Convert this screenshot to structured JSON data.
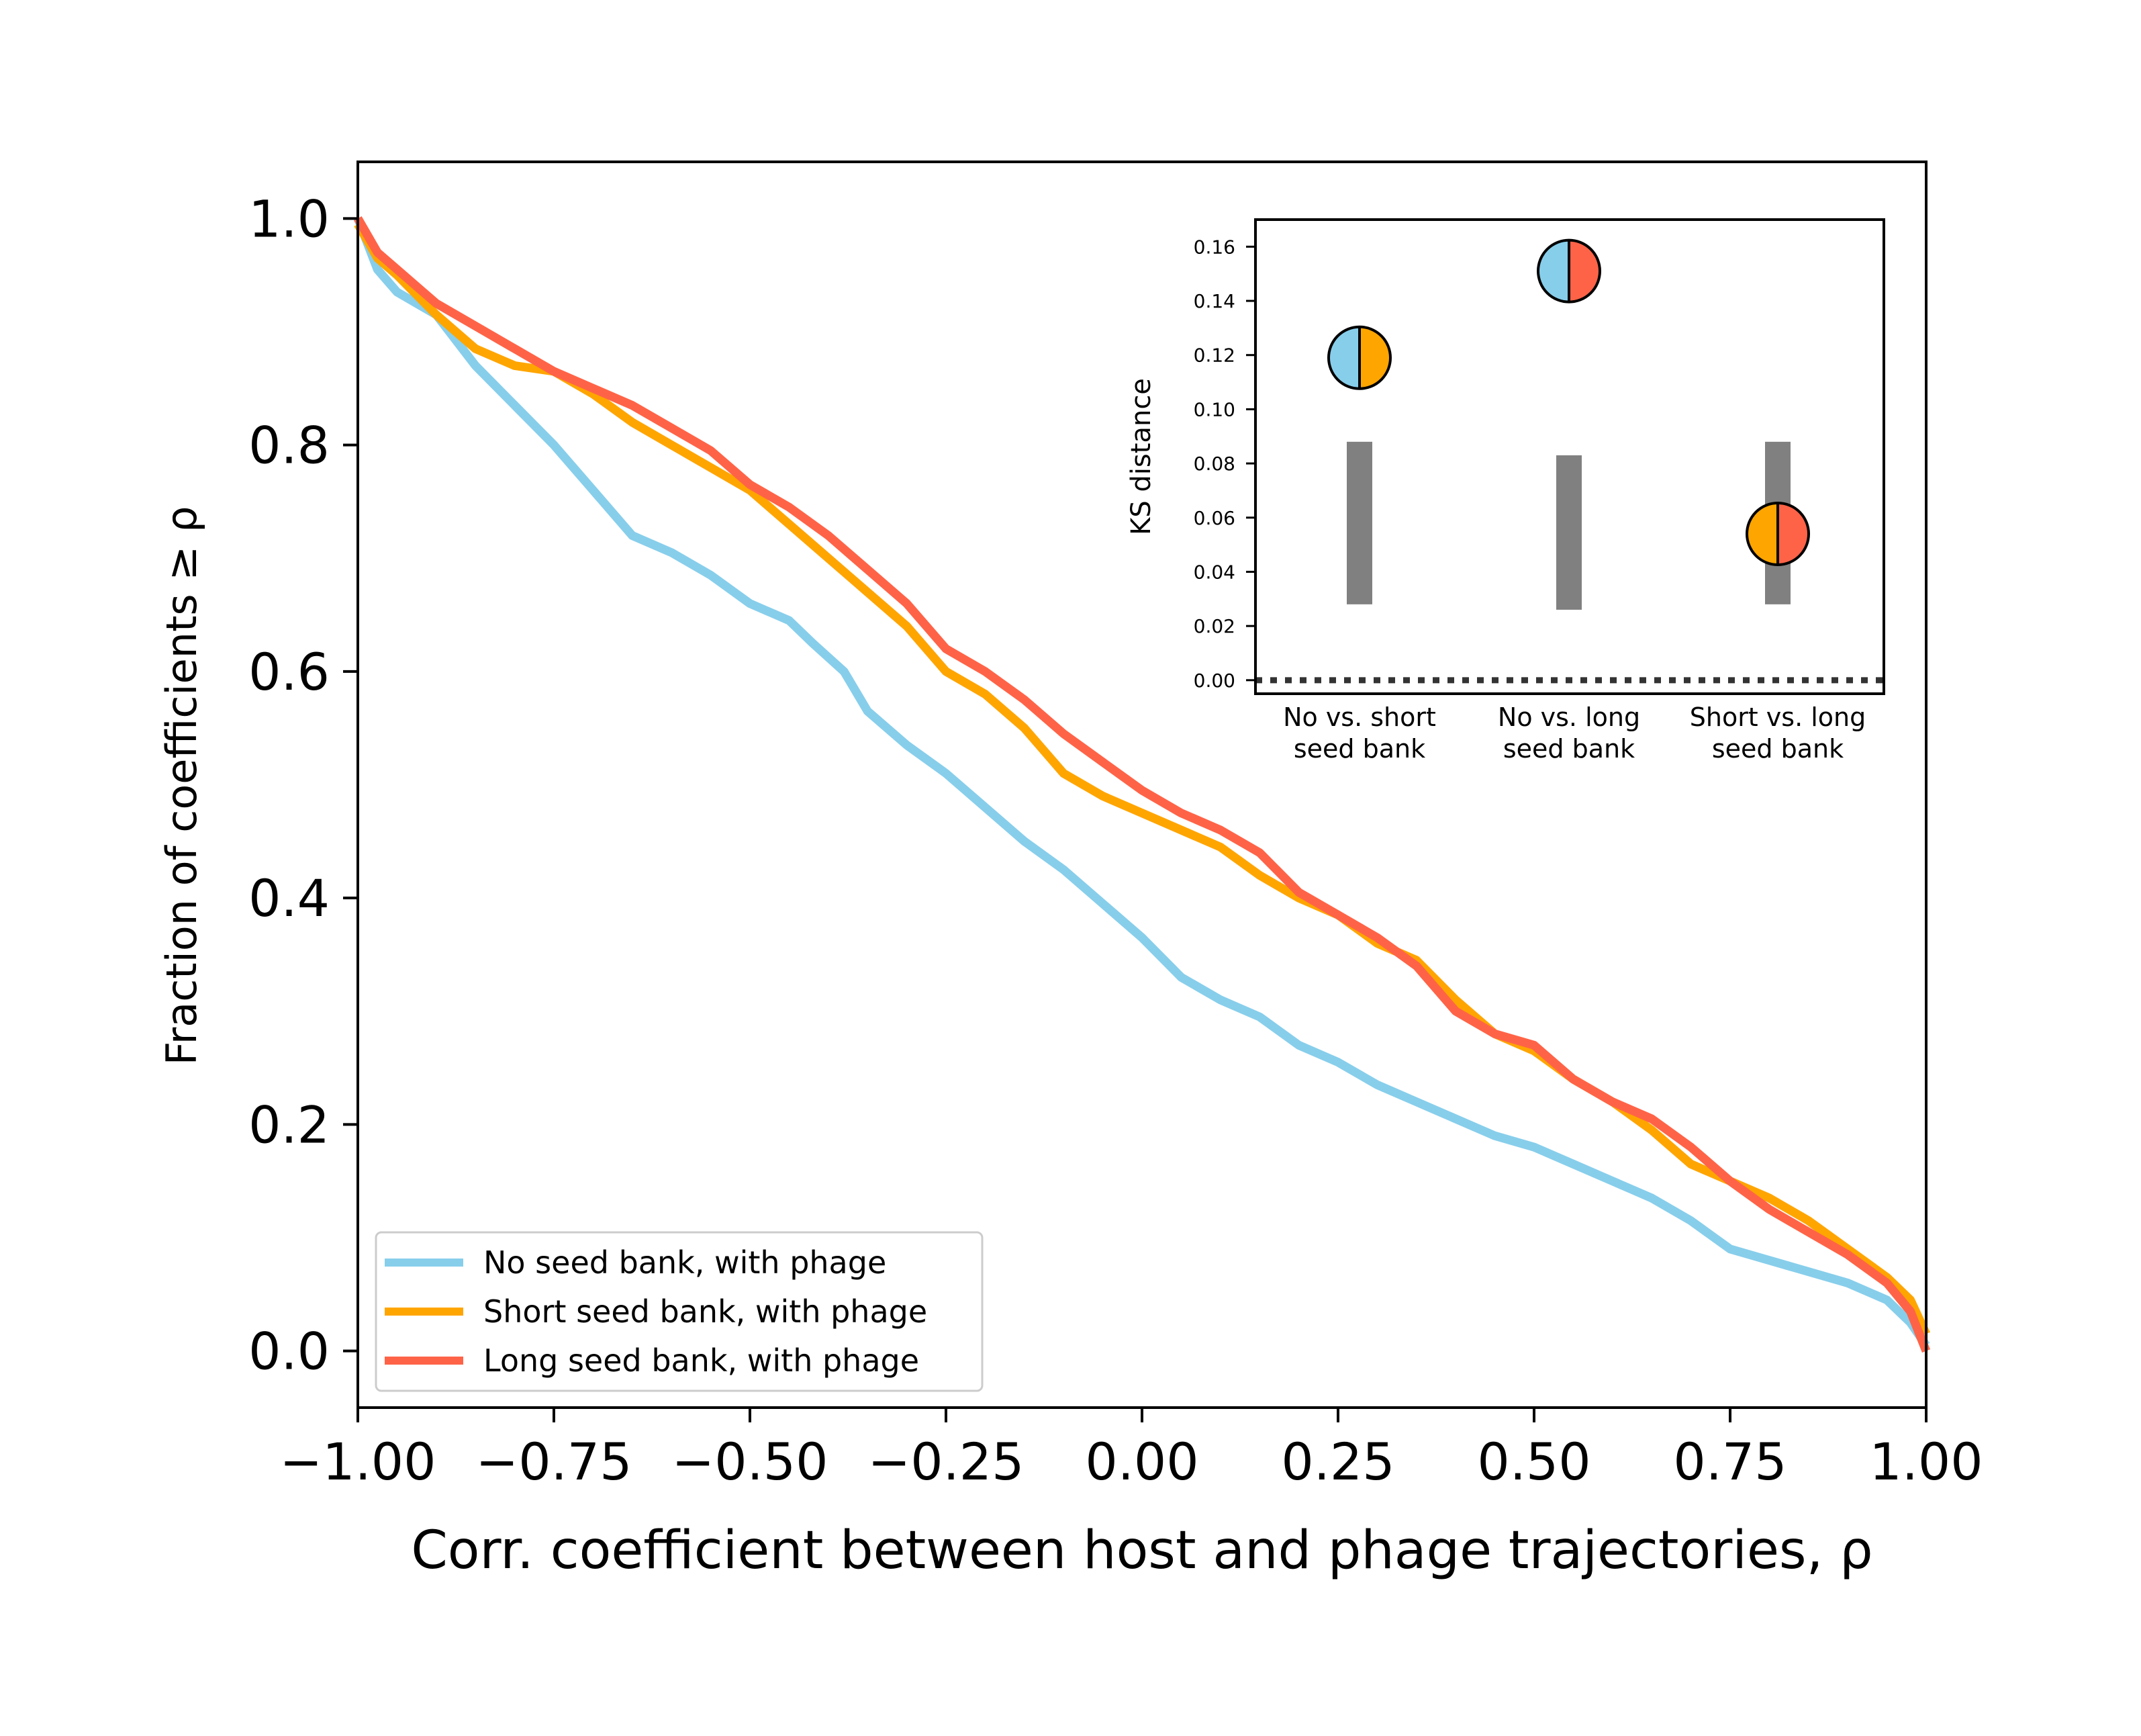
{
  "chart_data": [
    {
      "type": "line",
      "title": "",
      "xlabel": "Corr. coefficient between host and phage trajectories, ρ",
      "ylabel": "Fraction of coefficients  ≥ ρ",
      "xlim": [
        -1.0,
        1.0
      ],
      "ylim": [
        -0.05,
        1.05
      ],
      "xticks": [
        "−1.00",
        "−0.75",
        "−0.50",
        "−0.25",
        "0.00",
        "0.25",
        "0.50",
        "0.75",
        "1.00"
      ],
      "yticks": [
        "0.0",
        "0.2",
        "0.4",
        "0.6",
        "0.8",
        "1.0"
      ],
      "grid": false,
      "legend_position": "lower-left",
      "series": [
        {
          "name": "No seed bank, with phage",
          "color": "#87CEEB",
          "points": [
            [
              -1.0,
              1.0
            ],
            [
              -0.975,
              0.955
            ],
            [
              -0.95,
              0.935
            ],
            [
              -0.9,
              0.915
            ],
            [
              -0.85,
              0.87
            ],
            [
              -0.8,
              0.835
            ],
            [
              -0.75,
              0.8
            ],
            [
              -0.7,
              0.76
            ],
            [
              -0.65,
              0.72
            ],
            [
              -0.6,
              0.705
            ],
            [
              -0.55,
              0.685
            ],
            [
              -0.5,
              0.66
            ],
            [
              -0.45,
              0.645
            ],
            [
              -0.42,
              0.625
            ],
            [
              -0.38,
              0.6
            ],
            [
              -0.35,
              0.565
            ],
            [
              -0.3,
              0.535
            ],
            [
              -0.25,
              0.51
            ],
            [
              -0.2,
              0.48
            ],
            [
              -0.15,
              0.45
            ],
            [
              -0.1,
              0.425
            ],
            [
              -0.05,
              0.395
            ],
            [
              0.0,
              0.365
            ],
            [
              0.05,
              0.33
            ],
            [
              0.1,
              0.31
            ],
            [
              0.15,
              0.295
            ],
            [
              0.2,
              0.27
            ],
            [
              0.25,
              0.255
            ],
            [
              0.3,
              0.235
            ],
            [
              0.35,
              0.22
            ],
            [
              0.4,
              0.205
            ],
            [
              0.45,
              0.19
            ],
            [
              0.5,
              0.18
            ],
            [
              0.55,
              0.165
            ],
            [
              0.6,
              0.15
            ],
            [
              0.65,
              0.135
            ],
            [
              0.7,
              0.115
            ],
            [
              0.75,
              0.09
            ],
            [
              0.8,
              0.08
            ],
            [
              0.85,
              0.07
            ],
            [
              0.9,
              0.06
            ],
            [
              0.95,
              0.045
            ],
            [
              0.98,
              0.025
            ],
            [
              1.0,
              0.005
            ]
          ]
        },
        {
          "name": "Short seed bank, with phage",
          "color": "#FFA500",
          "points": [
            [
              -1.0,
              0.995
            ],
            [
              -0.975,
              0.965
            ],
            [
              -0.95,
              0.95
            ],
            [
              -0.9,
              0.915
            ],
            [
              -0.85,
              0.885
            ],
            [
              -0.8,
              0.87
            ],
            [
              -0.75,
              0.865
            ],
            [
              -0.7,
              0.845
            ],
            [
              -0.65,
              0.82
            ],
            [
              -0.6,
              0.8
            ],
            [
              -0.55,
              0.78
            ],
            [
              -0.5,
              0.76
            ],
            [
              -0.45,
              0.73
            ],
            [
              -0.4,
              0.7
            ],
            [
              -0.35,
              0.67
            ],
            [
              -0.3,
              0.64
            ],
            [
              -0.25,
              0.6
            ],
            [
              -0.2,
              0.58
            ],
            [
              -0.15,
              0.55
            ],
            [
              -0.1,
              0.51
            ],
            [
              -0.05,
              0.49
            ],
            [
              0.0,
              0.475
            ],
            [
              0.05,
              0.46
            ],
            [
              0.1,
              0.445
            ],
            [
              0.15,
              0.42
            ],
            [
              0.2,
              0.4
            ],
            [
              0.25,
              0.385
            ],
            [
              0.3,
              0.36
            ],
            [
              0.35,
              0.345
            ],
            [
              0.4,
              0.31
            ],
            [
              0.45,
              0.28
            ],
            [
              0.5,
              0.265
            ],
            [
              0.55,
              0.24
            ],
            [
              0.6,
              0.22
            ],
            [
              0.65,
              0.195
            ],
            [
              0.7,
              0.165
            ],
            [
              0.75,
              0.15
            ],
            [
              0.8,
              0.135
            ],
            [
              0.85,
              0.115
            ],
            [
              0.9,
              0.09
            ],
            [
              0.95,
              0.065
            ],
            [
              0.98,
              0.045
            ],
            [
              1.0,
              0.015
            ]
          ]
        },
        {
          "name": "Long seed bank, with phage",
          "color": "#FF6347",
          "points": [
            [
              -1.0,
              1.0
            ],
            [
              -0.975,
              0.97
            ],
            [
              -0.95,
              0.955
            ],
            [
              -0.9,
              0.925
            ],
            [
              -0.85,
              0.905
            ],
            [
              -0.8,
              0.885
            ],
            [
              -0.75,
              0.865
            ],
            [
              -0.7,
              0.85
            ],
            [
              -0.65,
              0.835
            ],
            [
              -0.6,
              0.815
            ],
            [
              -0.55,
              0.795
            ],
            [
              -0.5,
              0.765
            ],
            [
              -0.45,
              0.745
            ],
            [
              -0.4,
              0.72
            ],
            [
              -0.35,
              0.69
            ],
            [
              -0.3,
              0.66
            ],
            [
              -0.25,
              0.62
            ],
            [
              -0.2,
              0.6
            ],
            [
              -0.15,
              0.575
            ],
            [
              -0.1,
              0.545
            ],
            [
              -0.05,
              0.52
            ],
            [
              0.0,
              0.495
            ],
            [
              0.05,
              0.475
            ],
            [
              0.1,
              0.46
            ],
            [
              0.15,
              0.44
            ],
            [
              0.2,
              0.405
            ],
            [
              0.25,
              0.385
            ],
            [
              0.3,
              0.365
            ],
            [
              0.35,
              0.34
            ],
            [
              0.4,
              0.3
            ],
            [
              0.45,
              0.28
            ],
            [
              0.5,
              0.27
            ],
            [
              0.55,
              0.24
            ],
            [
              0.6,
              0.22
            ],
            [
              0.65,
              0.205
            ],
            [
              0.7,
              0.18
            ],
            [
              0.75,
              0.15
            ],
            [
              0.8,
              0.125
            ],
            [
              0.85,
              0.105
            ],
            [
              0.9,
              0.085
            ],
            [
              0.95,
              0.06
            ],
            [
              0.98,
              0.035
            ],
            [
              1.0,
              0.0
            ]
          ]
        }
      ]
    },
    {
      "type": "scatter",
      "title": "",
      "xlabel": "",
      "ylabel": "KS distance",
      "ylim": [
        -0.005,
        0.17
      ],
      "yticks": [
        "0.00",
        "0.02",
        "0.04",
        "0.06",
        "0.08",
        "0.10",
        "0.12",
        "0.14",
        "0.16"
      ],
      "categories": [
        "No vs. short\nseed bank",
        "No vs. long\nseed bank",
        "Short vs. long\nseed bank"
      ],
      "grid": false,
      "reference_line": {
        "y": 0.0,
        "style": "dotted",
        "color": "#333333"
      },
      "null_ranges": [
        {
          "low": 0.028,
          "high": 0.088
        },
        {
          "low": 0.026,
          "high": 0.083
        },
        {
          "low": 0.028,
          "high": 0.088
        }
      ],
      "points": [
        {
          "value": 0.119,
          "left_color": "#87CEEB",
          "right_color": "#FFA500"
        },
        {
          "value": 0.151,
          "left_color": "#87CEEB",
          "right_color": "#FF6347"
        },
        {
          "value": 0.054,
          "left_color": "#FFA500",
          "right_color": "#FF6347"
        }
      ],
      "range_color": "#808080"
    }
  ]
}
